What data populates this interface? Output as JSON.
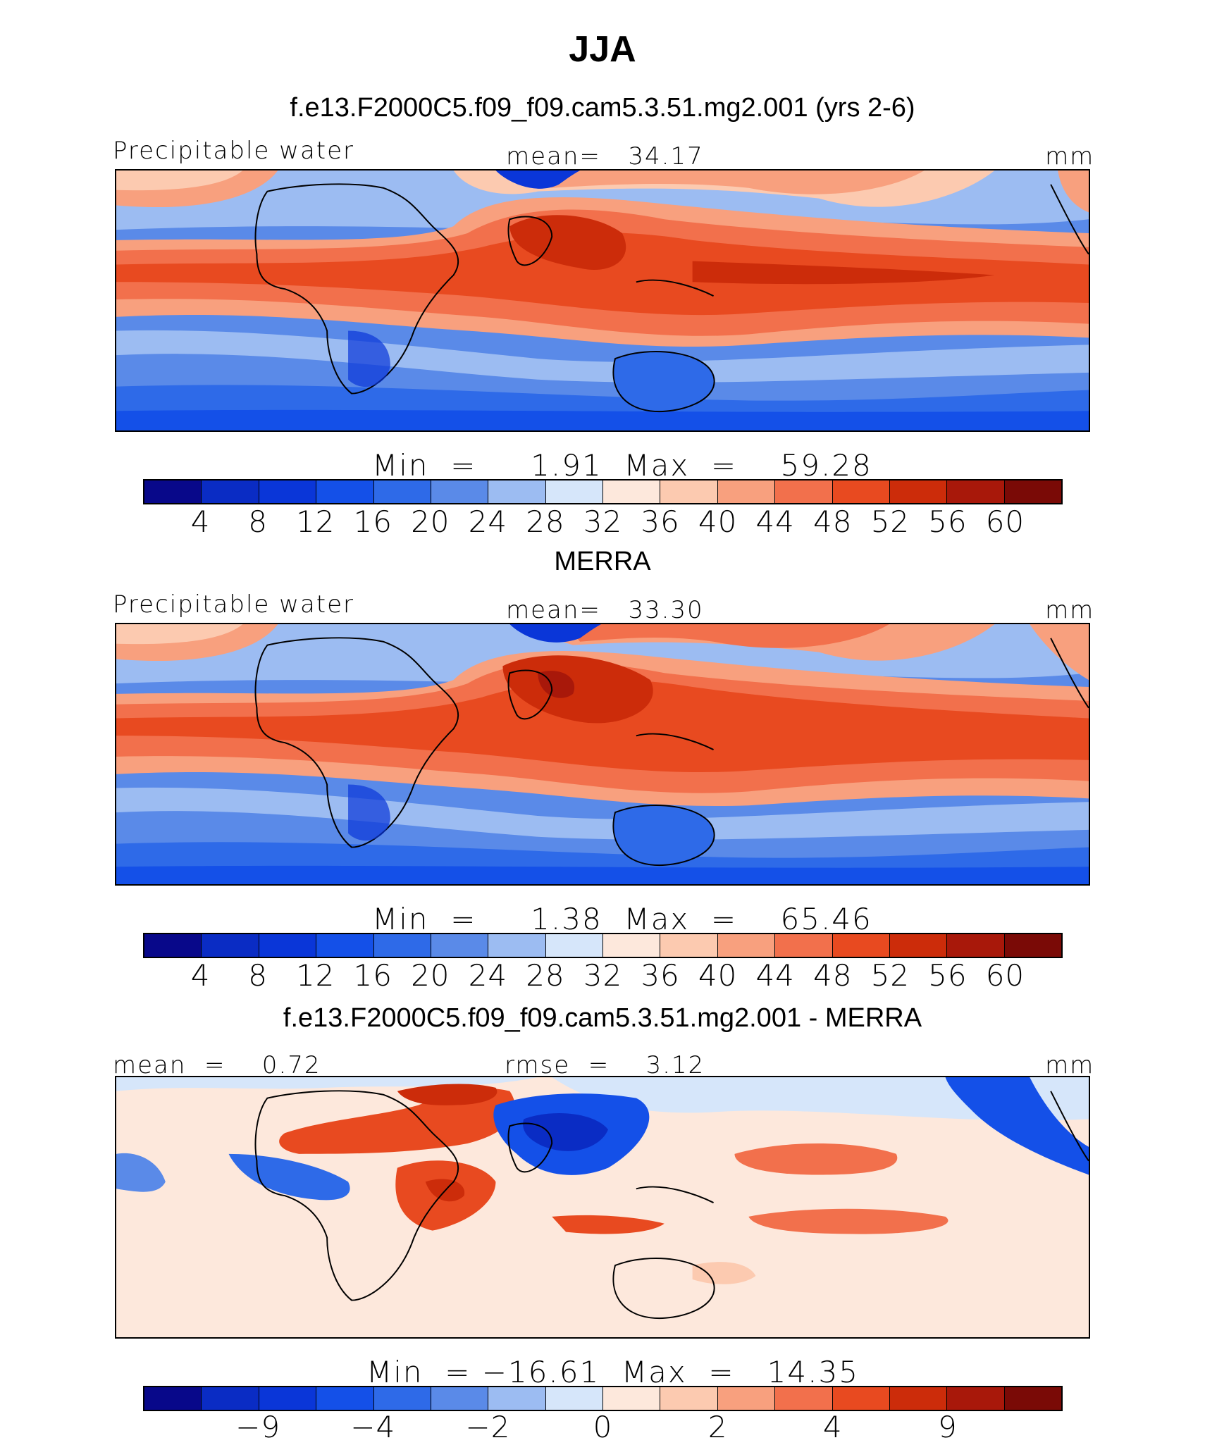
{
  "figure": {
    "season": "JJA"
  },
  "panels": [
    {
      "title": "f.e13.F2000C5.f09_f09.cam5.3.51.mg2.001 (yrs 2-6)",
      "left_label": "Precipitable water",
      "center_label": "mean=   34.17",
      "units": "mm",
      "min_max_label": "Min  =     1.91  Max  =    59.28",
      "colorbar": {
        "colors": [
          "#08088a",
          "#0a2cc4",
          "#0a36d8",
          "#1450e8",
          "#2e6ae8",
          "#5a8ae8",
          "#9cbcf2",
          "#d6e6fa",
          "#fde8dc",
          "#fccab0",
          "#f8a07e",
          "#f2704c",
          "#e84a20",
          "#cc2c0a",
          "#a8180a",
          "#7a0a06"
        ],
        "ticks": [
          "4",
          "8",
          "12",
          "16",
          "20",
          "24",
          "28",
          "32",
          "36",
          "40",
          "44",
          "48",
          "52",
          "56",
          "60"
        ]
      }
    },
    {
      "title": "MERRA",
      "left_label": "Precipitable water",
      "center_label": "mean=   33.30",
      "units": "mm",
      "min_max_label": "Min  =     1.38  Max  =    65.46",
      "colorbar": {
        "colors": [
          "#08088a",
          "#0a2cc4",
          "#0a36d8",
          "#1450e8",
          "#2e6ae8",
          "#5a8ae8",
          "#9cbcf2",
          "#d6e6fa",
          "#fde8dc",
          "#fccab0",
          "#f8a07e",
          "#f2704c",
          "#e84a20",
          "#cc2c0a",
          "#a8180a",
          "#7a0a06"
        ],
        "ticks": [
          "4",
          "8",
          "12",
          "16",
          "20",
          "24",
          "28",
          "32",
          "36",
          "40",
          "44",
          "48",
          "52",
          "56",
          "60"
        ]
      }
    },
    {
      "title": "f.e13.F2000C5.f09_f09.cam5.3.51.mg2.001 - MERRA",
      "left_label": "mean  =    0.72",
      "center_label": "rmse  =    3.12",
      "units": "mm",
      "min_max_label": "Min  = −16.61  Max  =   14.35",
      "colorbar": {
        "colors": [
          "#08088a",
          "#0a2cc4",
          "#0a36d8",
          "#1450e8",
          "#2e6ae8",
          "#5a8ae8",
          "#9cbcf2",
          "#d6e6fa",
          "#fde8dc",
          "#fccab0",
          "#f8a07e",
          "#f2704c",
          "#e84a20",
          "#cc2c0a",
          "#a8180a",
          "#7a0a06"
        ],
        "ticks": [
          "−9",
          "−4",
          "−2",
          "0",
          "2",
          "4",
          "9"
        ]
      }
    }
  ]
}
